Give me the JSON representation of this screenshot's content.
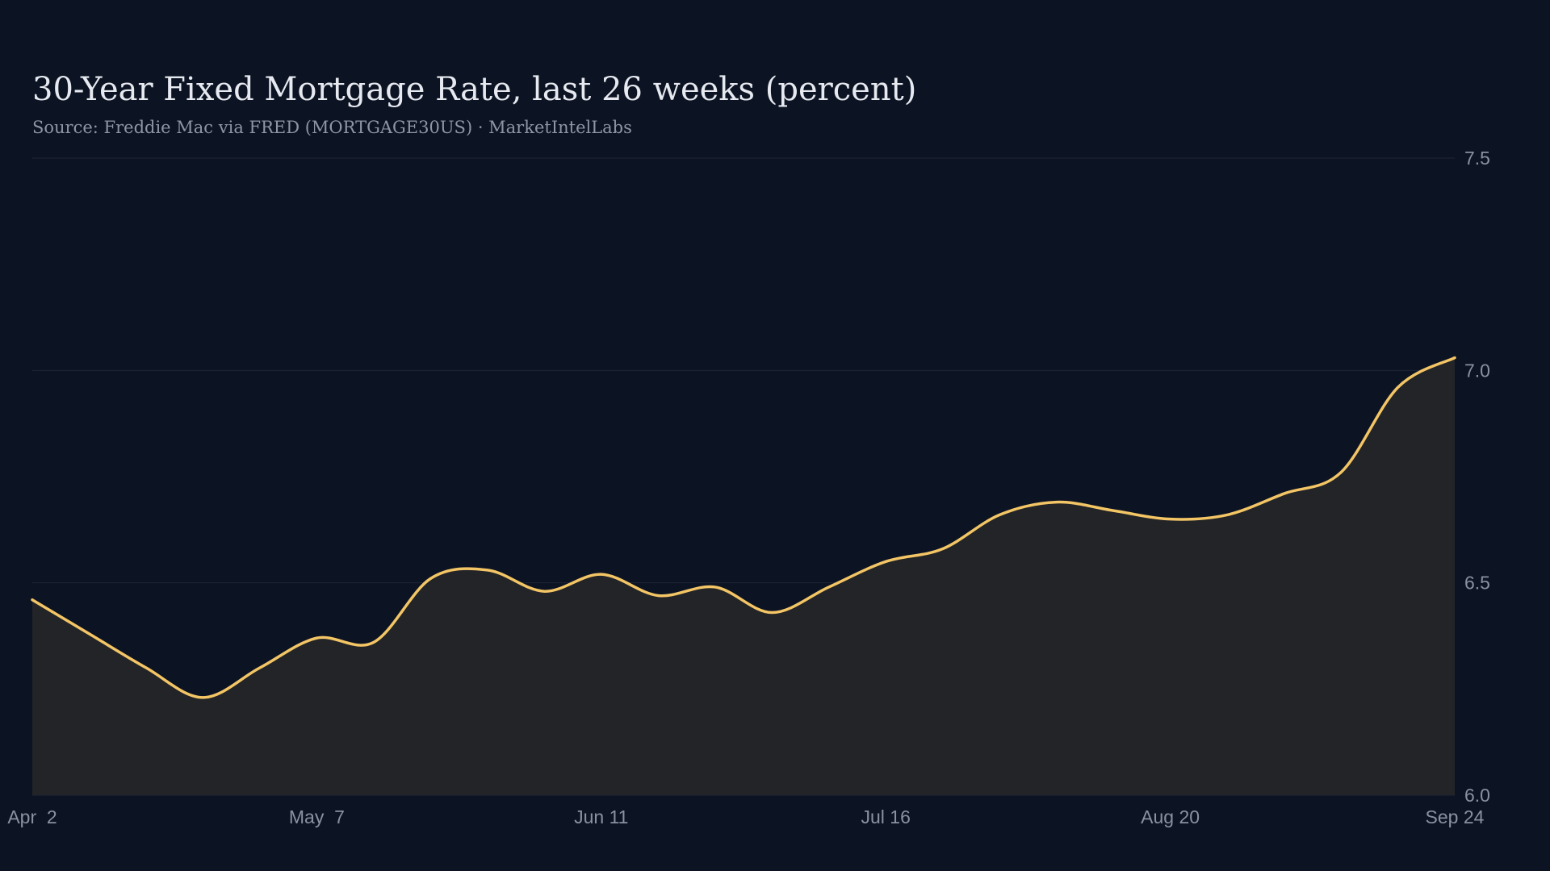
{
  "title": "30-Year Fixed Mortgage Rate, last 26 weeks (percent)",
  "subtitle": "Source: Freddie Mac via FRED (MORTGAGE30US) · MarketIntelLabs",
  "colors": {
    "background": "#0c1323",
    "line": "#f3c565",
    "area": "#222428",
    "grid": "#1f2636",
    "text": "#e6e9ef",
    "muted": "#8a92a1"
  },
  "chart_data": {
    "type": "area",
    "x": [
      "Apr 2",
      "Apr 9",
      "Apr 16",
      "Apr 23",
      "Apr 30",
      "May 7",
      "May 14",
      "May 21",
      "May 28",
      "Jun 4",
      "Jun 11",
      "Jun 18",
      "Jun 25",
      "Jul 2",
      "Jul 9",
      "Jul 16",
      "Jul 23",
      "Jul 30",
      "Aug 6",
      "Aug 13",
      "Aug 20",
      "Aug 27",
      "Sep 3",
      "Sep 10",
      "Sep 17",
      "Sep 24"
    ],
    "series": [
      {
        "values": [
          6.46,
          6.38,
          6.3,
          6.23,
          6.3,
          6.37,
          6.36,
          6.51,
          6.53,
          6.48,
          6.52,
          6.47,
          6.49,
          6.43,
          6.49,
          6.55,
          6.58,
          6.66,
          6.69,
          6.67,
          6.65,
          6.66,
          6.71,
          6.76,
          6.96,
          7.03
        ]
      }
    ],
    "xticks": [
      "Apr  2",
      "May  7",
      "Jun 11",
      "Jul 16",
      "Aug 20",
      "Sep 24"
    ],
    "xtick_index": [
      0,
      5,
      10,
      15,
      20,
      25
    ],
    "yticks": [
      "6.0",
      "6.5",
      "7.0",
      "7.5"
    ],
    "ylim": [
      6.0,
      7.5
    ],
    "xlabel": "",
    "ylabel": "",
    "grid": true,
    "y_axis_position": "right",
    "legend": "none"
  }
}
